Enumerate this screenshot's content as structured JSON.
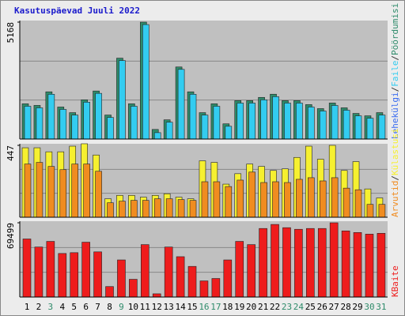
{
  "title": "Kasutuspäevad Juuli 2022",
  "legend_separator": "/",
  "chart_data": [
    {
      "type": "bar",
      "grid_divisions": 3,
      "ylim": [
        0,
        5168
      ],
      "yticks": [
        5168
      ],
      "label_extra": "Lehekülgi",
      "label_extra_color": "#3a6cf0",
      "series": [
        {
          "name": "Pöördumisi",
          "color": "#2e8b6a",
          "values": [
            1558,
            1487,
            2088,
            1416,
            1168,
            1735,
            2124,
            1062,
            3575,
            1558,
            5168,
            425,
            850,
            3186,
            2088,
            1168,
            1558,
            673,
            1699,
            1699,
            1841,
            1982,
            1699,
            1699,
            1522,
            1345,
            1593,
            1381,
            1133,
            1027,
            1168
          ]
        },
        {
          "name": "Faile",
          "color": "#33ccf0",
          "values": [
            1450,
            1380,
            1980,
            1310,
            1060,
            1630,
            2020,
            955,
            3470,
            1450,
            5060,
            283,
            745,
            3080,
            1980,
            1060,
            1450,
            565,
            1590,
            1590,
            1735,
            1875,
            1590,
            1590,
            1415,
            1240,
            1485,
            1275,
            1025,
            920,
            1060
          ]
        }
      ]
    },
    {
      "type": "bar",
      "grid_divisions": 3,
      "ylim": [
        0,
        447
      ],
      "yticks": [
        447
      ],
      "series": [
        {
          "name": "Külastusi",
          "color": "#f6f030",
          "values": [
            432,
            432,
            407,
            407,
            442,
            457,
            387,
            115,
            136,
            136,
            125,
            136,
            146,
            125,
            115,
            351,
            341,
            206,
            271,
            331,
            316,
            291,
            301,
            372,
            442,
            361,
            447,
            291,
            346,
            176,
            120
          ]
        },
        {
          "name": "Arvutid",
          "color": "#f08c20",
          "values": [
            331,
            341,
            316,
            296,
            331,
            331,
            286,
            90,
            100,
            105,
            105,
            115,
            115,
            110,
            105,
            221,
            221,
            191,
            231,
            281,
            216,
            221,
            216,
            236,
            246,
            226,
            246,
            181,
            171,
            80,
            80
          ]
        }
      ]
    },
    {
      "type": "bar",
      "grid_divisions": 3,
      "ylim": [
        0,
        69499
      ],
      "yticks": [
        69499
      ],
      "categories": [
        "1",
        "2",
        "3",
        "4",
        "5",
        "6",
        "7",
        "8",
        "9",
        "10",
        "11",
        "12",
        "13",
        "14",
        "15",
        "16",
        "17",
        "18",
        "19",
        "20",
        "21",
        "22",
        "23",
        "24",
        "25",
        "26",
        "27",
        "28",
        "29",
        "30",
        "31"
      ],
      "category_colors": [
        "#000",
        "#000",
        "#2e8b6a",
        "#000",
        "#000",
        "#000",
        "#000",
        "#000",
        "#2e8b6a",
        "#000",
        "#000",
        "#000",
        "#000",
        "#000",
        "#000",
        "#2e8b6a",
        "#2e8b6a",
        "#000",
        "#000",
        "#000",
        "#000",
        "#000",
        "#2e8b6a",
        "#2e8b6a",
        "#000",
        "#000",
        "#000",
        "#000",
        "#000",
        "#2e8b6a",
        "#2e8b6a"
      ],
      "series": [
        {
          "name": "KBaite",
          "color": "#ee1c1c",
          "values": [
            54360,
            46810,
            52095,
            40770,
            41525,
            51340,
            42280,
            9815,
            34730,
            16610,
            49075,
            3020,
            46810,
            37750,
            28690,
            15100,
            17365,
            34730,
            52095,
            49075,
            64175,
            67950,
            64930,
            63420,
            64175,
            64175,
            69499,
            61910,
            60400,
            58890,
            59645
          ]
        }
      ]
    }
  ]
}
